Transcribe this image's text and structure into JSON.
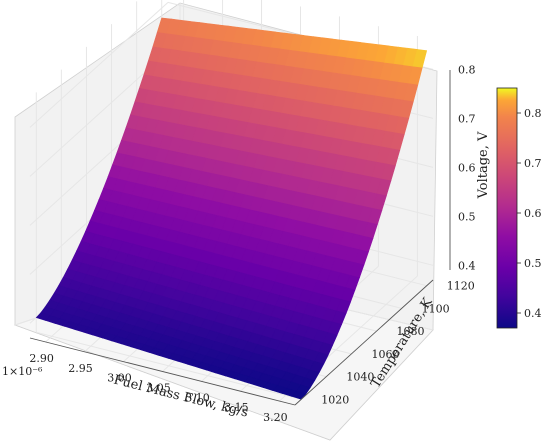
{
  "chart_data": {
    "type": "surface3d",
    "x": {
      "label": "Fuel Mass Flow, kg/s",
      "range": [
        2.88,
        3.22
      ],
      "ticks": [
        "2.90",
        "2.95",
        "3.00",
        "3.05",
        "3.10",
        "3.15",
        "3.20"
      ],
      "offset_label": "1×10⁻⁶"
    },
    "y": {
      "label": "Temperature, K",
      "range": [
        1015,
        1125
      ],
      "ticks": [
        "1020",
        "1040",
        "1060",
        "1080",
        "1100",
        "1120"
      ]
    },
    "z": {
      "label": "Voltage, V",
      "range": [
        0.37,
        0.86
      ],
      "ticks": [
        "0.4",
        "0.5",
        "0.6",
        "0.7",
        "0.8"
      ]
    },
    "surface_corners": [
      {
        "fuel_mass_flow": 2.88,
        "temperature": 1020,
        "voltage": 0.4
      },
      {
        "fuel_mass_flow": 3.22,
        "temperature": 1020,
        "voltage": 0.37
      },
      {
        "fuel_mass_flow": 2.88,
        "temperature": 1120,
        "voltage": 0.78
      },
      {
        "fuel_mass_flow": 3.22,
        "temperature": 1120,
        "voltage": 0.85
      }
    ],
    "colorbar": {
      "colormap": "plasma",
      "range": [
        0.37,
        0.85
      ],
      "ticks": [
        "0.4",
        "0.5",
        "0.6",
        "0.7",
        "0.8"
      ]
    },
    "grid": true
  }
}
